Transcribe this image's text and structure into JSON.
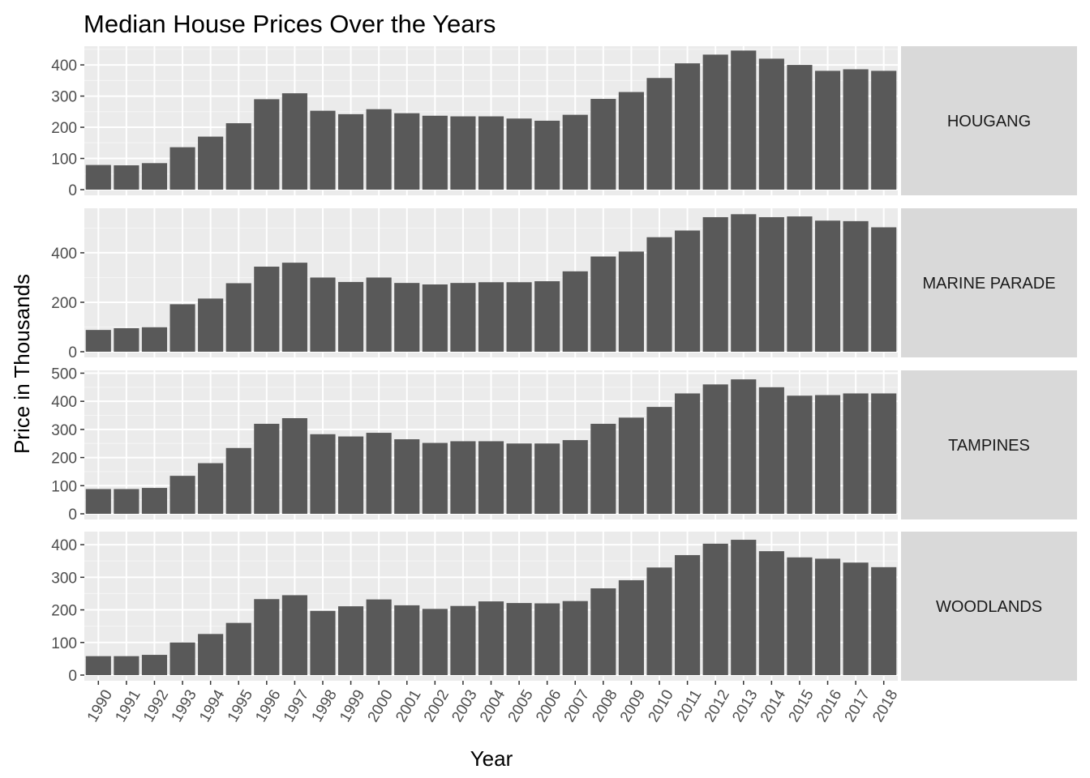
{
  "chart_data": {
    "type": "bar",
    "title": "Median House Prices Over the Years",
    "xlabel": "Year",
    "ylabel": "Price in Thousands",
    "facet": "rows",
    "grid": true,
    "categories": [
      "1990",
      "1991",
      "1992",
      "1993",
      "1994",
      "1995",
      "1996",
      "1997",
      "1998",
      "1999",
      "2000",
      "2001",
      "2002",
      "2003",
      "2004",
      "2005",
      "2006",
      "2007",
      "2008",
      "2009",
      "2010",
      "2011",
      "2012",
      "2013",
      "2014",
      "2015",
      "2016",
      "2017",
      "2018"
    ],
    "colors": {
      "bar": "#595959",
      "panel_bg": "#ebebeb",
      "grid_major": "#ffffff",
      "strip_bg": "#d9d9d9"
    },
    "panels": [
      {
        "name": "HOUGANG",
        "ylim": [
          0,
          460
        ],
        "yticks": [
          0,
          100,
          200,
          300,
          400
        ],
        "values": [
          79,
          78,
          85,
          136,
          170,
          213,
          290,
          309,
          253,
          242,
          258,
          245,
          237,
          235,
          235,
          228,
          221,
          240,
          291,
          313,
          358,
          405,
          433,
          446,
          420,
          400,
          381,
          386,
          381
        ]
      },
      {
        "name": "MARINE PARADE",
        "ylim": [
          0,
          580
        ],
        "yticks": [
          0,
          200,
          400
        ],
        "yticklabels": [
          "0",
          "200",
          "400"
        ],
        "values": [
          88,
          95,
          99,
          192,
          215,
          277,
          344,
          360,
          300,
          282,
          300,
          278,
          272,
          278,
          281,
          281,
          285,
          325,
          385,
          405,
          463,
          490,
          544,
          556,
          544,
          547,
          530,
          528,
          503
        ]
      },
      {
        "name": "TAMPINES",
        "ylim": [
          0,
          510
        ],
        "yticks": [
          0,
          100,
          200,
          300,
          400,
          500
        ],
        "values": [
          88,
          88,
          92,
          135,
          180,
          234,
          320,
          340,
          283,
          275,
          288,
          265,
          252,
          258,
          258,
          250,
          250,
          262,
          320,
          342,
          380,
          428,
          460,
          478,
          450,
          420,
          422,
          428,
          428
        ]
      },
      {
        "name": "WOODLANDS",
        "ylim": [
          0,
          440
        ],
        "yticks": [
          0,
          100,
          200,
          300,
          400
        ],
        "values": [
          58,
          58,
          62,
          100,
          126,
          160,
          233,
          245,
          197,
          211,
          232,
          214,
          203,
          212,
          226,
          221,
          220,
          227,
          266,
          291,
          330,
          368,
          403,
          415,
          380,
          361,
          357,
          345,
          331
        ]
      }
    ]
  }
}
